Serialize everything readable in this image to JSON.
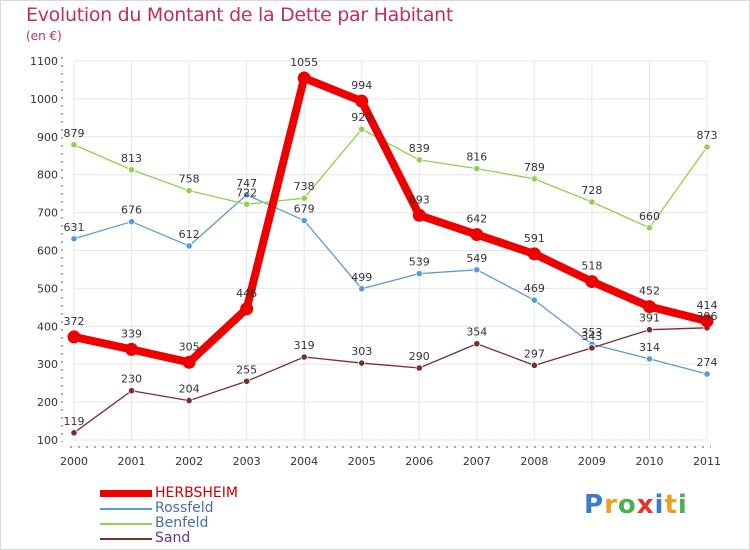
{
  "title": "Evolution du Montant de la Dette par Habitant",
  "subtitle": "(en €)",
  "logo": {
    "letters": [
      "P",
      "r",
      "o",
      "x",
      "i",
      "t",
      "i"
    ],
    "colors": [
      "#3a7cc8",
      "#e8a21f",
      "#4caf50",
      "#e5352b",
      "#3a7cc8",
      "#e8a21f",
      "#4caf50"
    ]
  },
  "colors": {
    "title": "#c0305e",
    "axis": "#cc2244",
    "grid": "#e6e6e6",
    "label": "#333333"
  },
  "chart_data": {
    "type": "line",
    "x": [
      "2000",
      "2001",
      "2002",
      "2003",
      "2004",
      "2005",
      "2006",
      "2007",
      "2008",
      "2009",
      "2010",
      "2011"
    ],
    "ylim": [
      100,
      1100
    ],
    "yticks": [
      "100",
      "200",
      "300",
      "400",
      "500",
      "600",
      "700",
      "800",
      "900",
      "1000",
      "1100"
    ],
    "grid": true,
    "legend_position": "bottom-left",
    "series": [
      {
        "name": "Rossfeld",
        "color": "#5b9bd5",
        "values": [
          631,
          676,
          612,
          747,
          679,
          499,
          539,
          549,
          469,
          353,
          314,
          274
        ],
        "labels": [
          "631",
          "676",
          "612",
          "747",
          "679",
          "499",
          "539",
          "549",
          "469",
          "353",
          "314",
          "274"
        ],
        "style": "thin"
      },
      {
        "name": "Benfeld",
        "color": "#8fd14f",
        "values": [
          879,
          813,
          758,
          722,
          738,
          920,
          839,
          816,
          789,
          728,
          660,
          873
        ],
        "labels": [
          "879",
          "813",
          "758",
          "722",
          "738",
          "920",
          "839",
          "816",
          "789",
          "728",
          "660",
          "873"
        ],
        "style": "thin"
      },
      {
        "name": "Sand",
        "color": "#7a2e2e",
        "values": [
          119,
          230,
          204,
          255,
          319,
          303,
          290,
          354,
          297,
          343,
          391,
          396
        ],
        "labels": [
          "119",
          "230",
          "204",
          "255",
          "319",
          "303",
          "290",
          "354",
          "297",
          "343",
          "391",
          "396"
        ],
        "style": "thin"
      },
      {
        "name": "HERBSHEIM",
        "color": "#ee0000",
        "values": [
          372,
          339,
          305,
          446,
          1055,
          994,
          693,
          642,
          591,
          518,
          452,
          414
        ],
        "labels": [
          "372",
          "339",
          "305",
          "446",
          "1055",
          "994",
          "693",
          "642",
          "591",
          "518",
          "452",
          "414"
        ],
        "style": "thick"
      }
    ],
    "legend_order": [
      "HERBSHEIM",
      "Rossfeld",
      "Benfeld",
      "Sand"
    ]
  }
}
